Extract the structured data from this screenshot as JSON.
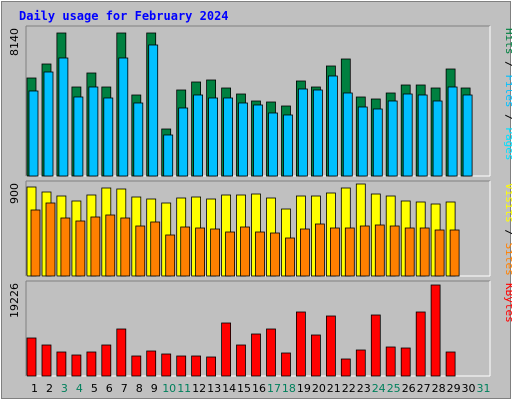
{
  "chart_data": {
    "type": "bar",
    "title": "Daily usage for February 2024",
    "categories": [
      "1",
      "2",
      "3",
      "4",
      "5",
      "6",
      "7",
      "8",
      "9",
      "10",
      "11",
      "12",
      "13",
      "14",
      "15",
      "16",
      "17",
      "18",
      "19",
      "20",
      "21",
      "22",
      "23",
      "24",
      "25",
      "26",
      "27",
      "28",
      "29",
      "30",
      "31"
    ],
    "weekend_days": [
      3,
      4,
      10,
      11,
      17,
      18,
      24,
      25,
      31
    ],
    "panels": [
      {
        "name": "hits-files-pages",
        "ymax_label": "8140",
        "ymax": 8140,
        "legend": [
          "Pages",
          "Files",
          "Hits"
        ],
        "series": [
          {
            "name": "Hits",
            "color": "#008040",
            "values": [
              5450,
              6240,
              7960,
              4940,
              5720,
              4940,
              7960,
              4520,
              7960,
              2630,
              4820,
              5240,
              5360,
              4890,
              4570,
              4190,
              4110,
              3900,
              5290,
              4940,
              6130,
              6500,
              4400,
              4320,
              4610,
              5100,
              5070,
              4890,
              5970,
              4890,
              null
            ]
          },
          {
            "name": "Files",
            "color": "#00c0ff",
            "values": [
              4750,
              5810,
              6580,
              4400,
              4940,
              4350,
              6580,
              4090,
              7300,
              2270,
              3780,
              4530,
              4330,
              4350,
              4090,
              3980,
              3520,
              3410,
              4830,
              4820,
              5580,
              4620,
              3840,
              3730,
              4170,
              4590,
              4500,
              4200,
              4940,
              4530,
              null
            ]
          },
          {
            "name": "Pages",
            "color": "#00e0ff",
            "values": [
              0,
              0,
              0,
              0,
              0,
              0,
              0,
              0,
              0,
              0,
              0,
              0,
              0,
              0,
              0,
              0,
              0,
              0,
              0,
              0,
              0,
              0,
              0,
              0,
              0,
              0,
              0,
              0,
              0,
              0,
              null
            ]
          }
        ]
      },
      {
        "name": "visits-sites",
        "ymax_label": "900",
        "ymax": 900,
        "legend": [
          "Sites",
          "Visits"
        ],
        "series": [
          {
            "name": "Visits",
            "color": "#ffff00",
            "values": [
              880,
              830,
              790,
              745,
              800,
              875,
              860,
              780,
              765,
              725,
              775,
              780,
              760,
              805,
              805,
              810,
              770,
              665,
              790,
              795,
              820,
              870,
              905,
              815,
              795,
              745,
              735,
              715,
              735,
              null,
              null
            ]
          },
          {
            "name": "Sites",
            "color": "#ff8000",
            "values": [
              650,
              720,
              570,
              540,
              580,
              600,
              570,
              490,
              530,
              405,
              480,
              470,
              460,
              440,
              480,
              440,
              430,
              375,
              465,
              510,
              470,
              470,
              490,
              500,
              490,
              470,
              470,
              450,
              450,
              null,
              null
            ]
          }
        ]
      },
      {
        "name": "kbytes",
        "ymax_label": "19226",
        "ymax": 19226,
        "legend": [
          "KBytes"
        ],
        "series": [
          {
            "name": "KBytes",
            "color": "#ff0000",
            "values": [
              8100,
              6500,
              5000,
              4400,
              5000,
              6600,
              10000,
              4200,
              5200,
              4600,
              4200,
              4200,
              4100,
              11200,
              6500,
              8800,
              9900,
              4800,
              13500,
              8600,
              12600,
              3500,
              5400,
              12800,
              6100,
              5900,
              13500,
              19226,
              5000,
              null,
              null
            ]
          }
        ]
      }
    ],
    "colors": {
      "background": "#c0c0c0",
      "title": "#0000ff",
      "weekday_label": "#000000",
      "weekend_label": "#00805c",
      "legend_separator": "#000000"
    }
  }
}
